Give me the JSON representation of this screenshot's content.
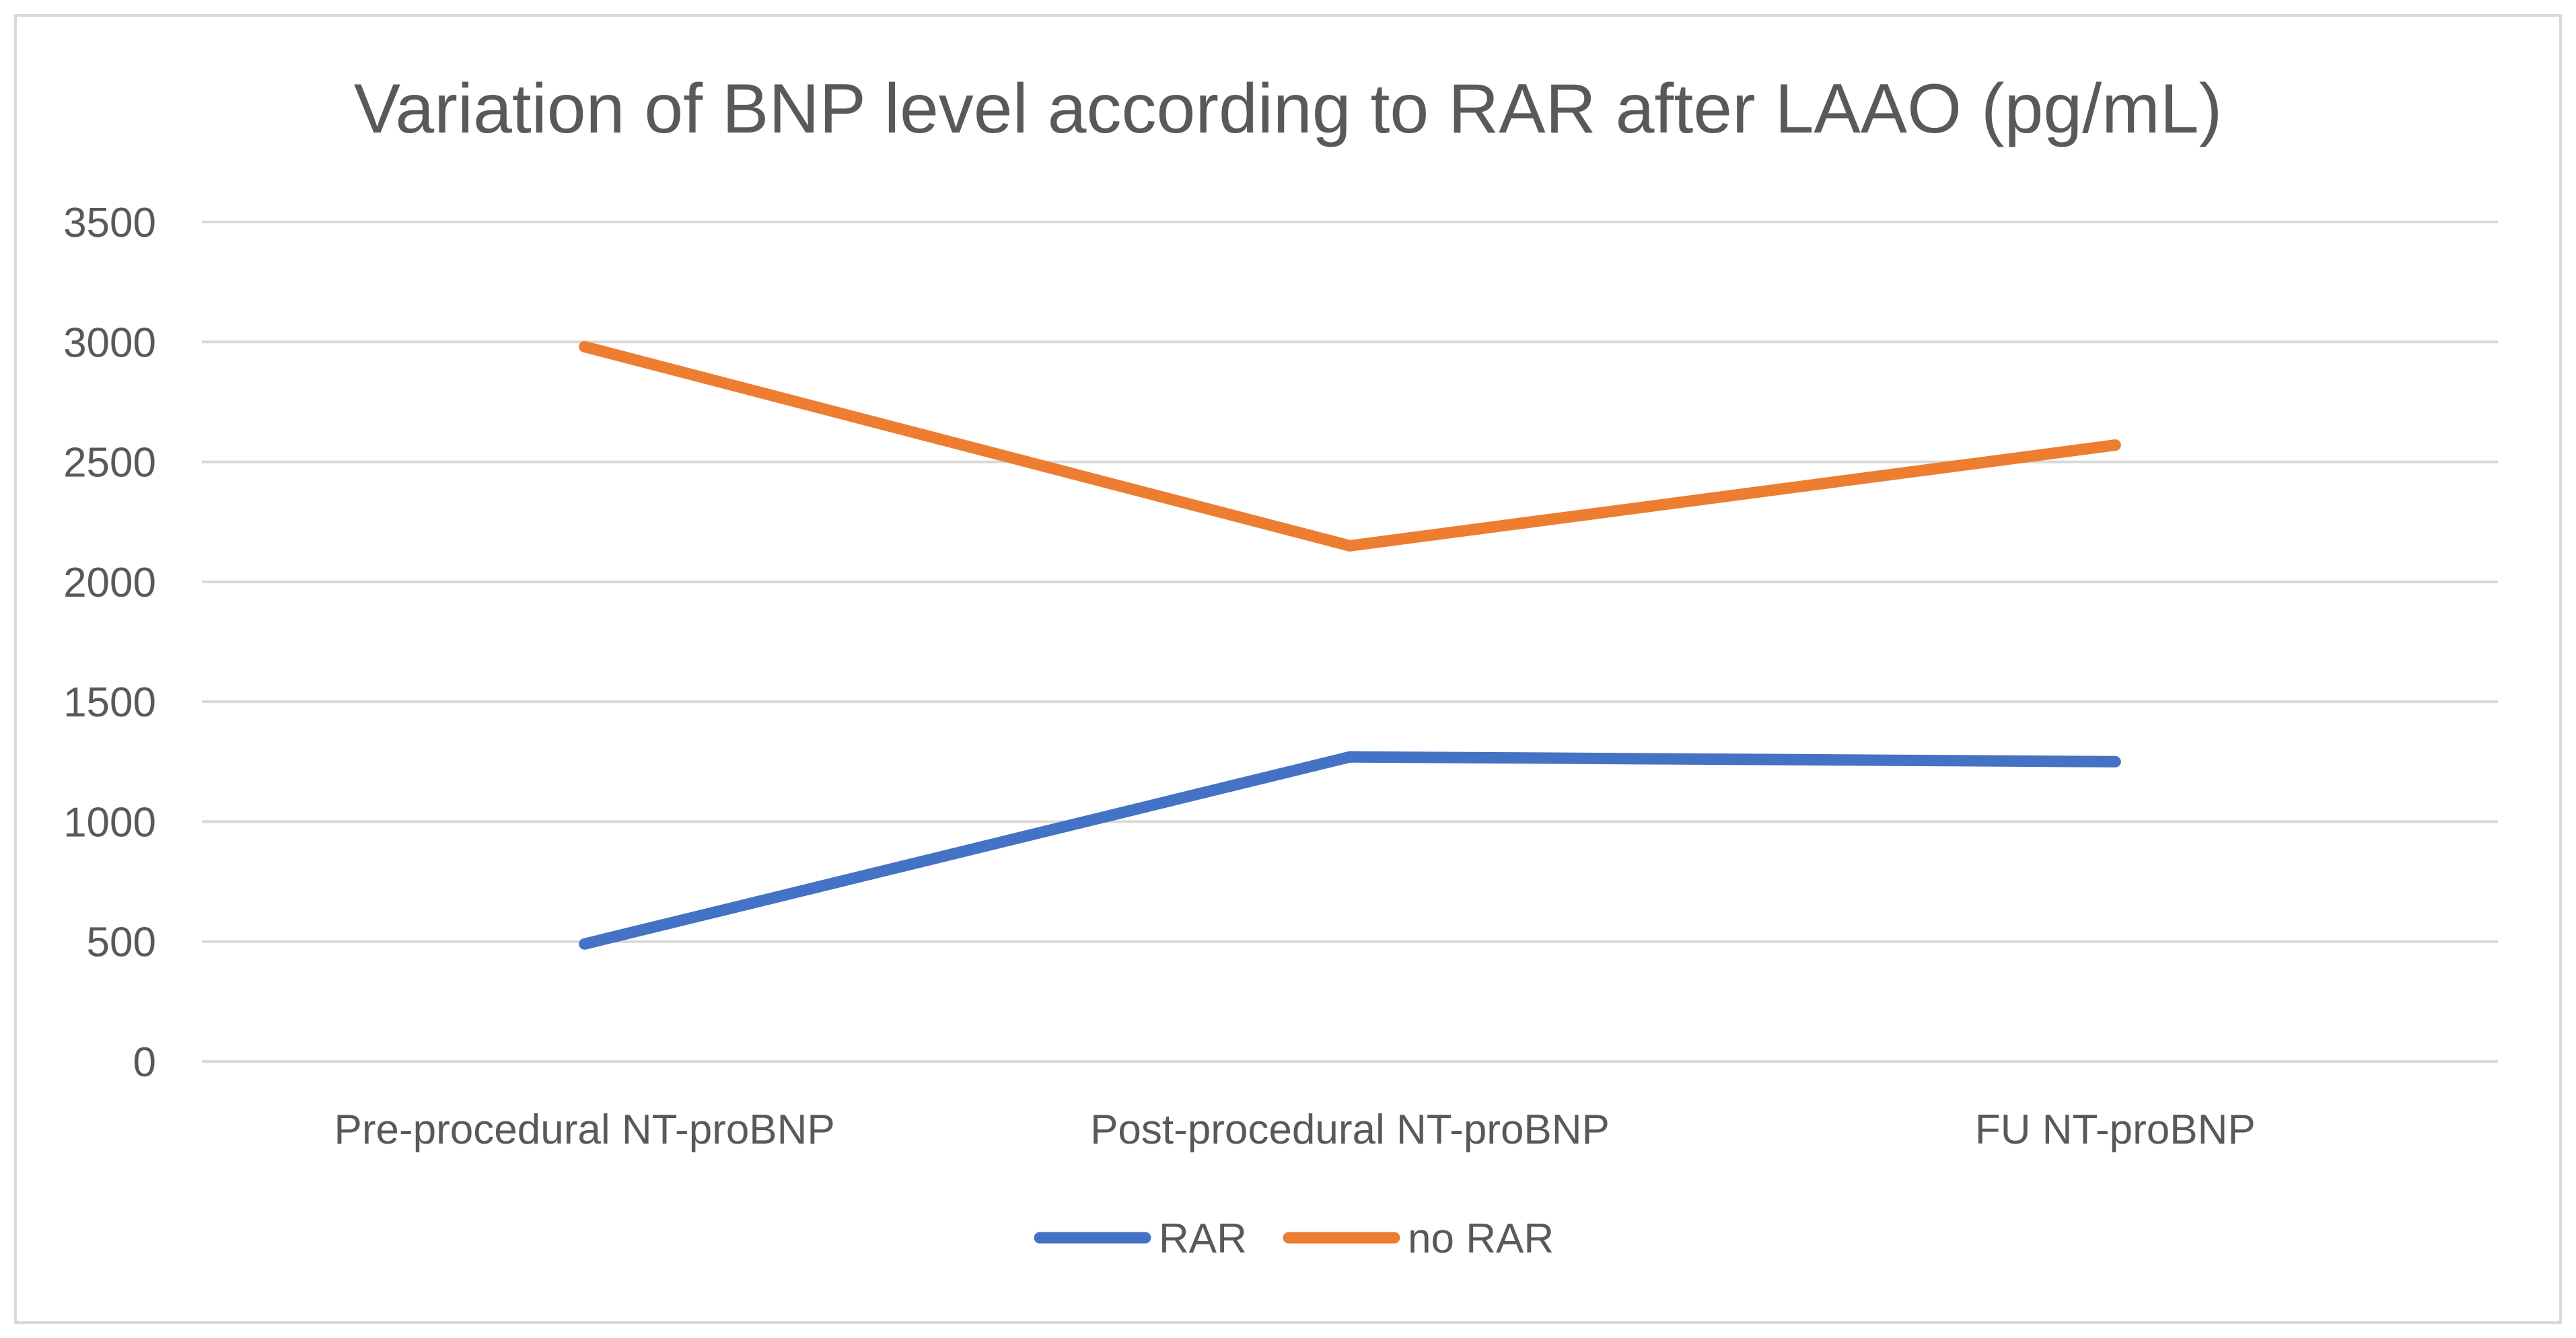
{
  "chart_data": {
    "type": "line",
    "title": "Variation of BNP level according to RAR after LAAO (pg/mL)",
    "categories": [
      "Pre-procedural NT-proBNP",
      "Post-procedural NT-proBNP",
      "FU NT-proBNP"
    ],
    "series": [
      {
        "name": "RAR",
        "values": [
          490,
          1270,
          1250
        ],
        "color": "#4472C4"
      },
      {
        "name": "no RAR",
        "values": [
          2980,
          2150,
          2570
        ],
        "color": "#ED7D31"
      }
    ],
    "yticks": [
      "0",
      "500",
      "1000",
      "1500",
      "2000",
      "2500",
      "3000",
      "3500"
    ],
    "ylim": [
      0,
      3500
    ],
    "xlabel": "",
    "ylabel": "",
    "grid": true,
    "legend": "bottom-center"
  }
}
